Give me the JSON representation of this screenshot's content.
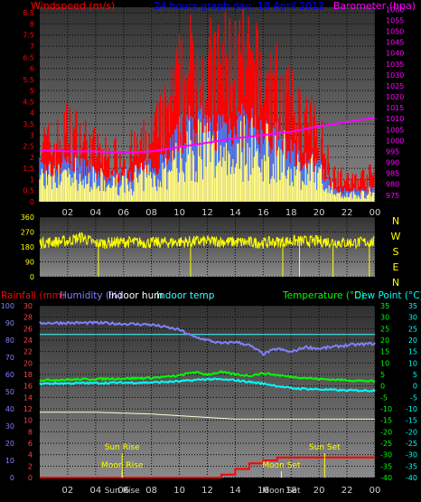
{
  "header": {
    "wind_label": "Windspeed (m/s)",
    "title": "24 hours graph day,  18 April 2012",
    "baro_label": "Barometer (hpa)"
  },
  "colors": {
    "background": "#000000",
    "gust": "#ff0000",
    "avg_wind": "#3f7fff",
    "wind_fill": "#ffff80",
    "barometer": "#ff00ff",
    "direction": "#ffff00",
    "humidity": "#8080ff",
    "indoor_hum": "#ffffff",
    "indoor_temp": "#40ffff",
    "temperature": "#00ff00",
    "dew_point": "#00ffff",
    "rainfall": "#ff0000",
    "sun_line": "#ffff00",
    "moon_line": "#ffff80"
  },
  "time_ticks": [
    "02",
    "04",
    "06",
    "08",
    "10",
    "12",
    "14",
    "16",
    "18",
    "20",
    "22",
    "00"
  ],
  "direction_labels": [
    "N",
    "W",
    "S",
    "E",
    "N"
  ],
  "bottom_legend": {
    "rainfall": "Rainfall (mm)",
    "humidity": "Humidity (%)",
    "indoor_hum": "Indoor hum",
    "indoor_temp": "Indoor temp",
    "temperature": "Temperature (°C)",
    "dew_point": "Dew Point (°C)"
  },
  "events": {
    "sun_rise": "Sun Rise",
    "sun_set": "Sun Set",
    "moon_rise": "Moon Rise",
    "moon_set": "Moon Set"
  },
  "chart_data": [
    {
      "type": "area",
      "title": "24 hours graph day,  18 April 2012",
      "x_range": [
        0,
        24
      ],
      "left_axis": {
        "label": "Windspeed (m/s)",
        "ylim": [
          0,
          8.75
        ],
        "ticks": [
          "0",
          "0.5",
          "1",
          "1.5",
          "2",
          "2.5",
          "3",
          "3.5",
          "4",
          "4.5",
          "5",
          "5.5",
          "6",
          "6.5",
          "7",
          "7.5",
          "8",
          "8.5"
        ]
      },
      "right_axis": {
        "label": "Barometer (hpa)",
        "ylim": [
          972,
          1061
        ],
        "ticks": [
          "975",
          "980",
          "985",
          "990",
          "995",
          "1000",
          "1005",
          "1010",
          "1015",
          "1020",
          "1025",
          "1030",
          "1035",
          "1040",
          "1045",
          "1050",
          "1055",
          "1060"
        ]
      },
      "series": [
        {
          "name": "Gust",
          "axis": "left",
          "color": "#ff0000",
          "x": [
            0,
            1,
            2,
            3,
            4,
            5,
            6,
            7,
            8,
            9,
            10,
            11,
            12,
            13,
            14,
            15,
            16,
            17,
            18,
            19,
            20,
            21,
            22,
            23,
            24
          ],
          "y": [
            3.0,
            2.8,
            3.6,
            3.2,
            2.6,
            2.2,
            2.4,
            2.6,
            3.2,
            4.2,
            6.0,
            6.8,
            6.4,
            6.8,
            7.0,
            6.6,
            6.0,
            5.6,
            4.6,
            4.0,
            3.4,
            1.6,
            1.0,
            1.2,
            1.4
          ]
        },
        {
          "name": "Average",
          "axis": "left",
          "color": "#3f7fff",
          "x": [
            0,
            1,
            2,
            3,
            4,
            5,
            6,
            7,
            8,
            9,
            10,
            11,
            12,
            13,
            14,
            15,
            16,
            17,
            18,
            19,
            20,
            21,
            22,
            23,
            24
          ],
          "y": [
            1.8,
            1.6,
            2.2,
            1.8,
            1.4,
            1.2,
            1.4,
            1.6,
            1.8,
            2.4,
            3.4,
            4.0,
            3.6,
            3.8,
            4.0,
            3.8,
            3.4,
            3.2,
            2.6,
            2.2,
            1.8,
            0.8,
            0.5,
            0.6,
            0.7
          ]
        },
        {
          "name": "Barometer",
          "axis": "right",
          "color": "#ff00ff",
          "x": [
            0,
            2,
            4,
            6,
            8,
            10,
            12,
            14,
            16,
            18,
            20,
            22,
            24
          ],
          "y": [
            995.5,
            995.0,
            995.0,
            994.5,
            995.0,
            997.0,
            999.0,
            1001.0,
            1002.5,
            1004.0,
            1006.5,
            1008.5,
            1010.5
          ]
        }
      ]
    },
    {
      "type": "scatter",
      "title": "Wind direction",
      "x_range": [
        0,
        24
      ],
      "ylim": [
        0,
        360
      ],
      "y_ticks": [
        "360",
        "270",
        "180",
        "90",
        "0"
      ],
      "series": [
        {
          "name": "Direction",
          "color": "#ffff00",
          "x": [
            0,
            2,
            3,
            4,
            6,
            8,
            10,
            12,
            14,
            16,
            18,
            20,
            22,
            24
          ],
          "y": [
            205,
            215,
            240,
            200,
            210,
            205,
            210,
            215,
            210,
            205,
            215,
            215,
            205,
            210
          ]
        }
      ]
    },
    {
      "type": "line",
      "title": "Temperature / Humidity / Rain",
      "x_range": [
        0,
        24
      ],
      "left_axis": {
        "rain_label": "Rainfall (mm)",
        "rain_ylim": [
          0,
          30
        ],
        "rain_ticks": [
          "30",
          "28",
          "26",
          "24",
          "22",
          "20",
          "18",
          "16",
          "14",
          "12",
          "10",
          "8",
          "6",
          "4",
          "2",
          "0"
        ],
        "hum_label": "Humidity (%)",
        "hum_ylim": [
          0,
          100
        ],
        "hum_ticks": [
          "100",
          "90",
          "80",
          "70",
          "60",
          "50",
          "40",
          "30",
          "20",
          "10",
          "0"
        ]
      },
      "right_axis": {
        "label": "Temperature (°C)",
        "ylim": [
          -40,
          35
        ],
        "ticks": [
          "35",
          "30",
          "25",
          "20",
          "15",
          "10",
          "5",
          "0",
          "-5",
          "-10",
          "-15",
          "-20",
          "-25",
          "-30",
          "-35",
          "-40"
        ],
        "dew_label": "Dew Point (°C)"
      },
      "series": [
        {
          "name": "Humidity (%)",
          "axis": "humidity",
          "color": "#8080ff",
          "x": [
            0,
            4,
            8,
            10,
            11,
            12,
            13,
            14,
            15,
            16,
            17,
            18,
            19,
            20,
            22,
            24
          ],
          "y": [
            90,
            90,
            89,
            86,
            82,
            80,
            78,
            79,
            77,
            72,
            75,
            73,
            76,
            75,
            77,
            78
          ]
        },
        {
          "name": "Indoor temp",
          "axis": "temperature",
          "color": "#40ffff",
          "x": [
            0,
            24
          ],
          "y": [
            22.5,
            22.5
          ]
        },
        {
          "name": "Temperature (°C)",
          "axis": "temperature",
          "color": "#00ff00",
          "x": [
            0,
            8,
            10,
            11,
            12,
            13,
            14,
            15,
            16,
            18,
            20,
            22,
            24
          ],
          "y": [
            2.5,
            3.5,
            4.5,
            6.0,
            5.0,
            6.0,
            5.0,
            4.5,
            5.5,
            4.0,
            3.0,
            2.5,
            2.0
          ]
        },
        {
          "name": "Dew Point (°C)",
          "axis": "temperature",
          "color": "#00ffff",
          "x": [
            0,
            8,
            10,
            12,
            14,
            16,
            17,
            18,
            20,
            22,
            24
          ],
          "y": [
            1.0,
            1.5,
            2.0,
            3.0,
            2.5,
            1.0,
            0.0,
            -1.0,
            -1.5,
            -2.0,
            -2.0
          ]
        },
        {
          "name": "Indoor hum",
          "axis": "humidity",
          "color": "#ffffd0",
          "x": [
            0,
            4,
            8,
            12,
            14,
            16,
            20,
            24
          ],
          "y": [
            38,
            38,
            37,
            35,
            34,
            34,
            34,
            34
          ]
        },
        {
          "name": "Rainfall (mm)",
          "axis": "rain",
          "color": "#ff0000",
          "x": [
            0,
            12,
            13,
            14,
            15,
            16,
            17,
            18,
            19,
            20,
            21,
            22,
            23,
            24
          ],
          "y": [
            0,
            0,
            0.5,
            1.5,
            2.5,
            3.0,
            3.5,
            3.5,
            3.5,
            3.5,
            3.5,
            3.5,
            3.5,
            3.5
          ]
        }
      ],
      "events": [
        {
          "label": "Sun Rise",
          "hour": 5.9
        },
        {
          "label": "Moon Rise",
          "hour": 5.9
        },
        {
          "label": "Moon Set",
          "hour": 17.3
        },
        {
          "label": "Sun Set",
          "hour": 20.4
        }
      ]
    }
  ]
}
